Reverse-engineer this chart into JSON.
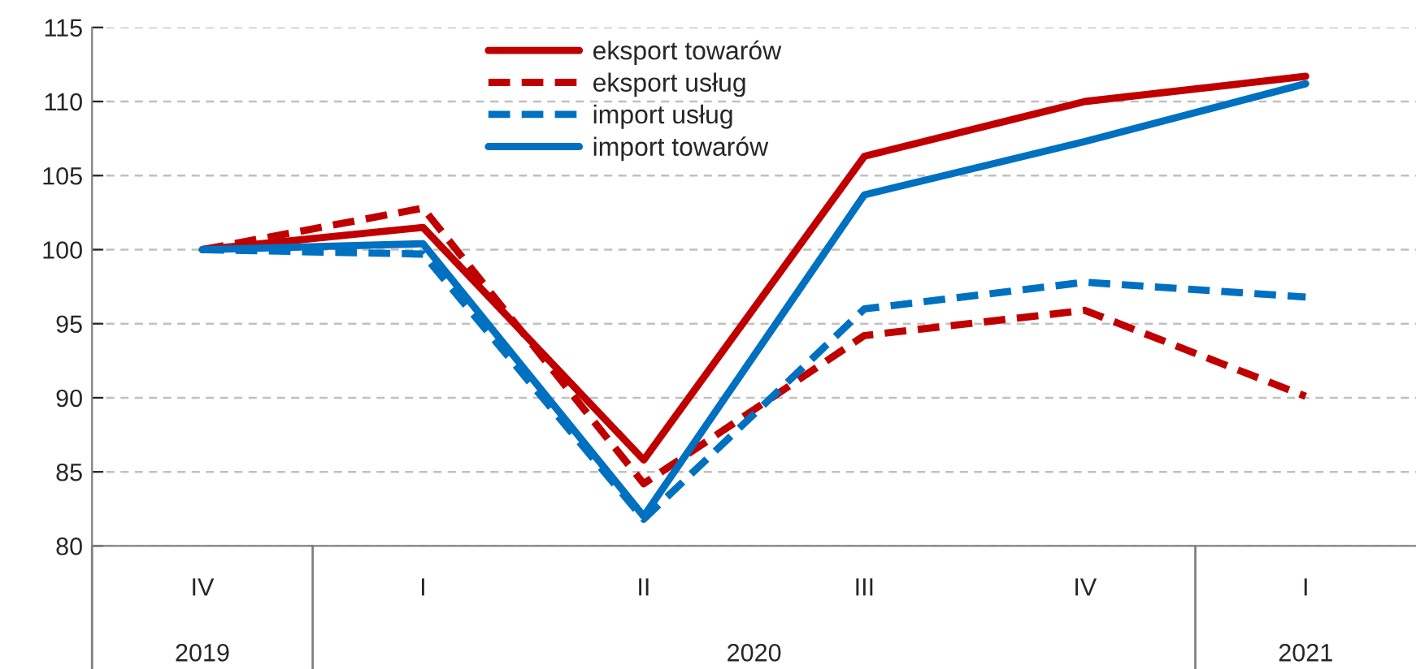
{
  "chart_data": {
    "type": "line",
    "categories": [
      "IV",
      "I",
      "II",
      "III",
      "IV",
      "I"
    ],
    "series": [
      {
        "name": "eksport towarów",
        "color": "#c00000",
        "line_style": "solid",
        "values": [
          100,
          101.5,
          85.8,
          106.3,
          110,
          111.7
        ]
      },
      {
        "name": "eksport usług",
        "color": "#c00000",
        "line_style": "dashed",
        "values": [
          100,
          102.8,
          84.2,
          94.2,
          95.9,
          90.1
        ]
      },
      {
        "name": "import usług",
        "color": "#0070c0",
        "line_style": "dashed",
        "values": [
          100,
          99.7,
          81.8,
          96.0,
          97.8,
          96.8
        ]
      },
      {
        "name": "import towarów",
        "color": "#0070c0",
        "line_style": "solid",
        "values": [
          100,
          100.4,
          82.0,
          103.7,
          107.3,
          111.2
        ]
      }
    ],
    "annotations": [
      "2019",
      "2020",
      "2021"
    ],
    "ylim": [
      80,
      115
    ],
    "yticks": [
      80,
      85,
      90,
      95,
      100,
      105,
      110,
      115
    ],
    "grid": "y",
    "legend": "top",
    "marker": "none"
  }
}
